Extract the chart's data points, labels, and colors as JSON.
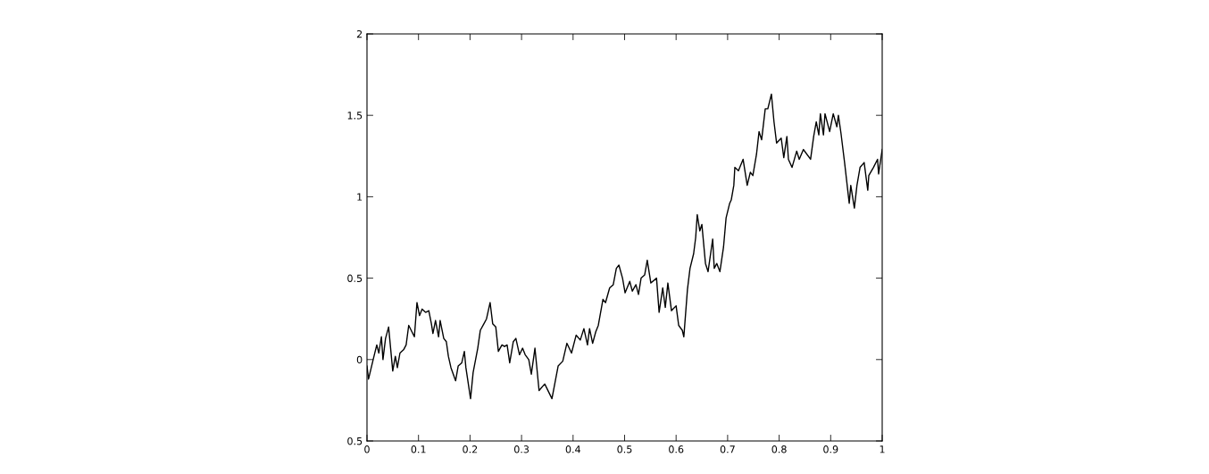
{
  "chart_data": {
    "type": "line",
    "grid": false,
    "marker": "none",
    "line_style": "solid",
    "xlim": [
      0,
      1
    ],
    "xticks": [
      0,
      0.1,
      0.2,
      0.3,
      0.4,
      0.5,
      0.6,
      0.7,
      0.8,
      0.9,
      1
    ],
    "ylim": [
      -0.5,
      2
    ],
    "yticks": [
      {
        "value": -0.5,
        "label": "0.5"
      },
      0,
      0.5,
      1,
      1.5,
      2
    ],
    "series": [
      {
        "color": "#000000",
        "x": [
          0.0,
          0.003,
          0.012,
          0.019,
          0.023,
          0.028,
          0.031,
          0.036,
          0.042,
          0.05,
          0.055,
          0.059,
          0.064,
          0.071,
          0.076,
          0.081,
          0.092,
          0.097,
          0.102,
          0.107,
          0.114,
          0.12,
          0.125,
          0.128,
          0.133,
          0.139,
          0.142,
          0.149,
          0.154,
          0.158,
          0.163,
          0.172,
          0.177,
          0.184,
          0.189,
          0.192,
          0.201,
          0.206,
          0.215,
          0.22,
          0.227,
          0.232,
          0.239,
          0.244,
          0.25,
          0.255,
          0.262,
          0.267,
          0.272,
          0.277,
          0.284,
          0.289,
          0.296,
          0.302,
          0.307,
          0.314,
          0.319,
          0.326,
          0.334,
          0.345,
          0.359,
          0.371,
          0.38,
          0.388,
          0.397,
          0.406,
          0.414,
          0.421,
          0.428,
          0.432,
          0.438,
          0.444,
          0.449,
          0.458,
          0.463,
          0.471,
          0.478,
          0.484,
          0.489,
          0.496,
          0.501,
          0.51,
          0.515,
          0.522,
          0.527,
          0.532,
          0.539,
          0.544,
          0.551,
          0.562,
          0.567,
          0.574,
          0.579,
          0.584,
          0.591,
          0.6,
          0.605,
          0.612,
          0.615,
          0.622,
          0.627,
          0.634,
          0.638,
          0.641,
          0.646,
          0.65,
          0.657,
          0.662,
          0.671,
          0.674,
          0.679,
          0.685,
          0.692,
          0.697,
          0.704,
          0.707,
          0.712,
          0.714,
          0.721,
          0.73,
          0.738,
          0.744,
          0.749,
          0.756,
          0.761,
          0.766,
          0.773,
          0.778,
          0.785,
          0.79,
          0.795,
          0.804,
          0.809,
          0.815,
          0.818,
          0.825,
          0.834,
          0.839,
          0.847,
          0.861,
          0.867,
          0.872,
          0.877,
          0.88,
          0.886,
          0.889,
          0.898,
          0.905,
          0.912,
          0.915,
          0.92,
          0.927,
          0.936,
          0.939,
          0.946,
          0.951,
          0.957,
          0.965,
          0.972,
          0.974,
          0.983,
          0.991,
          0.993,
          1.0
        ],
        "values": [
          -0.04,
          -0.12,
          0,
          0.09,
          0.04,
          0.14,
          0,
          0.13,
          0.2,
          -0.07,
          0.02,
          -0.05,
          0.04,
          0.06,
          0.09,
          0.21,
          0.14,
          0.35,
          0.27,
          0.31,
          0.29,
          0.3,
          0.22,
          0.16,
          0.24,
          0.14,
          0.24,
          0.13,
          0.11,
          0.02,
          -0.05,
          -0.13,
          -0.04,
          -0.02,
          0.05,
          -0.05,
          -0.24,
          -0.08,
          0.07,
          0.18,
          0.22,
          0.25,
          0.35,
          0.22,
          0.2,
          0.05,
          0.09,
          0.08,
          0.09,
          -0.02,
          0.11,
          0.13,
          0.03,
          0.07,
          0.03,
          0,
          -0.09,
          0.07,
          -0.19,
          -0.15,
          -0.24,
          -0.04,
          -0.01,
          0.1,
          0.04,
          0.15,
          0.12,
          0.19,
          0.09,
          0.19,
          0.1,
          0.17,
          0.21,
          0.37,
          0.35,
          0.44,
          0.46,
          0.56,
          0.58,
          0.5,
          0.41,
          0.48,
          0.42,
          0.46,
          0.4,
          0.5,
          0.52,
          0.61,
          0.47,
          0.5,
          0.29,
          0.44,
          0.32,
          0.47,
          0.3,
          0.33,
          0.21,
          0.18,
          0.14,
          0.43,
          0.56,
          0.65,
          0.75,
          0.89,
          0.79,
          0.83,
          0.59,
          0.54,
          0.74,
          0.56,
          0.59,
          0.54,
          0.69,
          0.87,
          0.96,
          0.98,
          1.07,
          1.18,
          1.16,
          1.23,
          1.07,
          1.15,
          1.13,
          1.26,
          1.4,
          1.35,
          1.54,
          1.54,
          1.63,
          1.46,
          1.33,
          1.36,
          1.24,
          1.37,
          1.23,
          1.18,
          1.28,
          1.23,
          1.29,
          1.23,
          1.37,
          1.46,
          1.38,
          1.51,
          1.38,
          1.51,
          1.4,
          1.51,
          1.43,
          1.5,
          1.39,
          1.21,
          0.96,
          1.07,
          0.93,
          1.07,
          1.18,
          1.21,
          1.04,
          1.13,
          1.18,
          1.23,
          1.14,
          1.29
        ]
      }
    ]
  }
}
